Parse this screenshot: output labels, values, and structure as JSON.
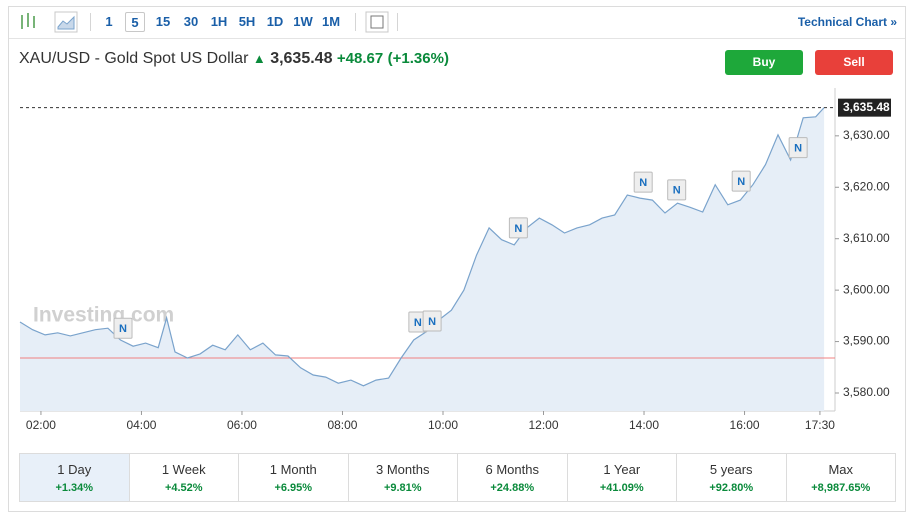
{
  "toolbar": {
    "intervals": [
      "1",
      "5",
      "15",
      "30",
      "1H",
      "5H",
      "1D",
      "1W",
      "1M"
    ],
    "link": "Technical Chart »"
  },
  "header": {
    "symbol": "XAU/USD - Gold Spot US Dollar",
    "price": "3,635.48",
    "change": "+48.67",
    "change_pct": "(+1.36%)"
  },
  "buttons": {
    "buy": "Buy",
    "sell": "Sell"
  },
  "chart_data": {
    "type": "line",
    "watermark": "Investing.com",
    "color": "#7aa3cc",
    "fill": "#e6eef7",
    "grid": false,
    "x": [
      95,
      110,
      125,
      140,
      155,
      170,
      185,
      200,
      215,
      230,
      245,
      260,
      270,
      280,
      295,
      310,
      325,
      340,
      355,
      370,
      385,
      400,
      415,
      430,
      445,
      460,
      475,
      490,
      505,
      520,
      535,
      550,
      565,
      580,
      595,
      610,
      625,
      640,
      655,
      670,
      685,
      700,
      715,
      730,
      745,
      760,
      775,
      790,
      805,
      820,
      835,
      850,
      865,
      880,
      895,
      910,
      925,
      940,
      955,
      970,
      985,
      1000,
      1015,
      1030,
      1045,
      1055
    ],
    "values": [
      3593.8,
      3592.3,
      3591.3,
      3591.7,
      3591.1,
      3591.7,
      3592.3,
      3592.6,
      3590.3,
      3589.1,
      3589.7,
      3588.8,
      3594.6,
      3588.0,
      3586.8,
      3587.6,
      3589.3,
      3588.4,
      3591.3,
      3588.4,
      3589.7,
      3587.4,
      3587.2,
      3584.9,
      3583.5,
      3583.1,
      3581.9,
      3582.5,
      3581.4,
      3582.5,
      3582.9,
      3586.8,
      3590.3,
      3591.9,
      3594.2,
      3596.1,
      3600.0,
      3606.8,
      3612.1,
      3609.8,
      3608.8,
      3612.1,
      3614.0,
      3612.7,
      3611.1,
      3612.1,
      3612.7,
      3614.0,
      3614.6,
      3618.5,
      3617.9,
      3617.5,
      3615.0,
      3616.9,
      3616.1,
      3615.2,
      3620.5,
      3616.6,
      3617.5,
      3620.5,
      3624.4,
      3630.2,
      3625.3,
      3633.5,
      3633.7,
      3635.48
    ],
    "xlim": [
      95,
      1068
    ],
    "ylim": [
      3576.5,
      3639.3
    ],
    "xticks": [
      {
        "value": 120,
        "label": "02:00"
      },
      {
        "value": 240,
        "label": "04:00"
      },
      {
        "value": 360,
        "label": "06:00"
      },
      {
        "value": 480,
        "label": "08:00"
      },
      {
        "value": 600,
        "label": "10:00"
      },
      {
        "value": 720,
        "label": "12:00"
      },
      {
        "value": 840,
        "label": "14:00"
      },
      {
        "value": 960,
        "label": "16:00"
      },
      {
        "value": 1050,
        "label": "17:30"
      }
    ],
    "yticks": [
      {
        "value": 3580,
        "label": "3,580.00"
      },
      {
        "value": 3590,
        "label": "3,590.00"
      },
      {
        "value": 3600,
        "label": "3,600.00"
      },
      {
        "value": 3610,
        "label": "3,610.00"
      },
      {
        "value": 3620,
        "label": "3,620.00"
      },
      {
        "value": 3630,
        "label": "3,630.00"
      }
    ],
    "last_price": {
      "value": 3635.48,
      "label": "3,635.48"
    },
    "reference_line": {
      "value": 3586.81,
      "color": "#f08080"
    },
    "annotations": [
      {
        "x": 218,
        "y": 3592.6,
        "label": "N"
      },
      {
        "x": 570,
        "y": 3593.8,
        "label": "N"
      },
      {
        "x": 587,
        "y": 3594.0,
        "label": "N"
      },
      {
        "x": 690,
        "y": 3612.1,
        "label": "N"
      },
      {
        "x": 839,
        "y": 3621.0,
        "label": "N"
      },
      {
        "x": 879,
        "y": 3619.5,
        "label": "N"
      },
      {
        "x": 956,
        "y": 3621.2,
        "label": "N"
      },
      {
        "x": 1024,
        "y": 3627.7,
        "label": "N"
      }
    ]
  },
  "periods": [
    {
      "label": "1 Day",
      "change": "+1.34%"
    },
    {
      "label": "1 Week",
      "change": "+4.52%"
    },
    {
      "label": "1 Month",
      "change": "+6.95%"
    },
    {
      "label": "3 Months",
      "change": "+9.81%"
    },
    {
      "label": "6 Months",
      "change": "+24.88%"
    },
    {
      "label": "1 Year",
      "change": "+41.09%"
    },
    {
      "label": "5 years",
      "change": "+92.80%"
    },
    {
      "label": "Max",
      "change": "+8,987.65%"
    }
  ]
}
